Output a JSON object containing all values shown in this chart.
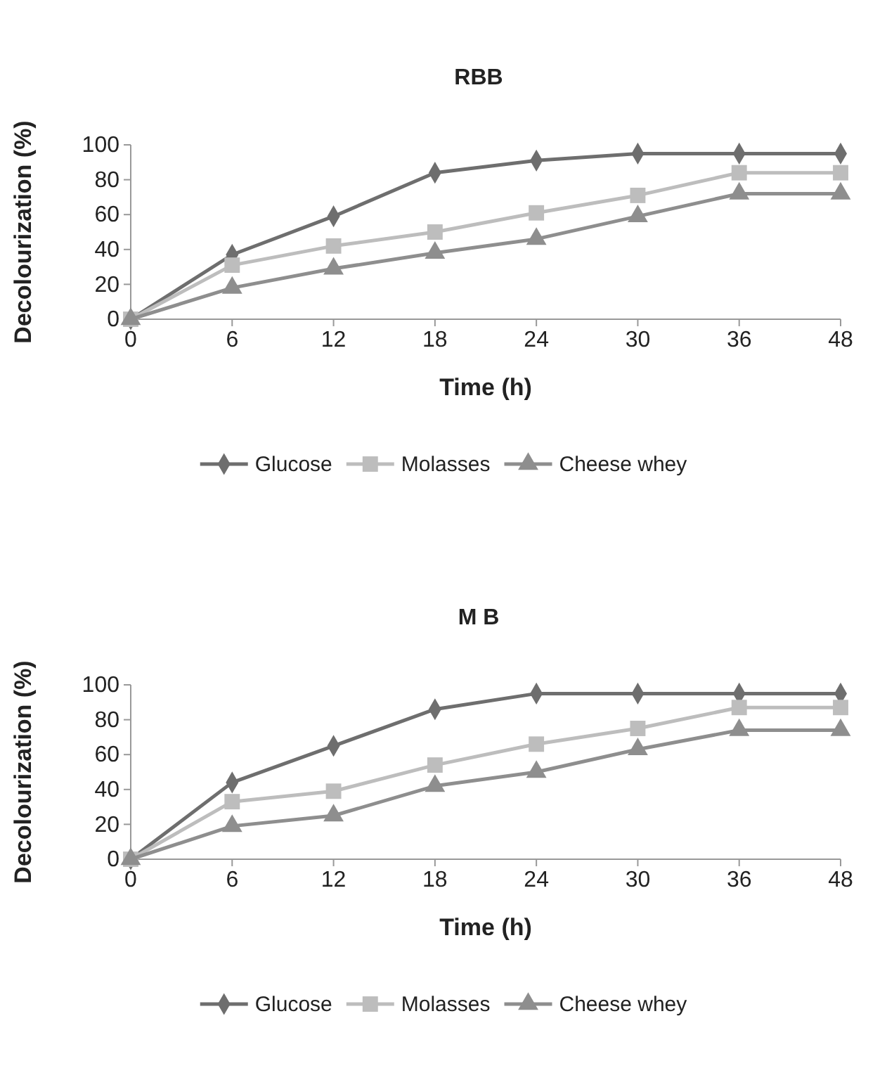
{
  "chart_data": [
    {
      "type": "line",
      "title": "RBB",
      "xlabel": "Time (h)",
      "ylabel": "Decolourization (%)",
      "categories": [
        "0",
        "6",
        "12",
        "18",
        "24",
        "30",
        "36",
        "48"
      ],
      "ylim": [
        0,
        100
      ],
      "yticks": [
        0,
        20,
        40,
        60,
        80,
        100
      ],
      "legend": "bottom",
      "grid": false,
      "series": [
        {
          "name": "Glucose",
          "color": "#6e6e6e",
          "marker": "diamond",
          "values": [
            0,
            37,
            59,
            84,
            91,
            95,
            95,
            95
          ]
        },
        {
          "name": "Molasses",
          "color": "#bdbdbd",
          "marker": "square",
          "values": [
            0,
            31,
            42,
            50,
            61,
            71,
            84,
            84
          ]
        },
        {
          "name": "Cheese whey",
          "color": "#8e8e8e",
          "marker": "triangle",
          "values": [
            0,
            18,
            29,
            38,
            46,
            59,
            72,
            72
          ]
        }
      ]
    },
    {
      "type": "line",
      "title": "M B",
      "xlabel": "Time (h)",
      "ylabel": "Decolourization (%)",
      "categories": [
        "0",
        "6",
        "12",
        "18",
        "24",
        "30",
        "36",
        "48"
      ],
      "ylim": [
        0,
        100
      ],
      "yticks": [
        0,
        20,
        40,
        60,
        80,
        100
      ],
      "legend": "bottom",
      "grid": false,
      "series": [
        {
          "name": "Glucose",
          "color": "#6e6e6e",
          "marker": "diamond",
          "values": [
            0,
            44,
            65,
            86,
            95,
            95,
            95,
            95
          ]
        },
        {
          "name": "Molasses",
          "color": "#bdbdbd",
          "marker": "square",
          "values": [
            0,
            33,
            39,
            54,
            66,
            75,
            87,
            87
          ]
        },
        {
          "name": "Cheese whey",
          "color": "#8e8e8e",
          "marker": "triangle",
          "values": [
            0,
            19,
            25,
            42,
            50,
            63,
            74,
            74
          ]
        }
      ]
    }
  ]
}
